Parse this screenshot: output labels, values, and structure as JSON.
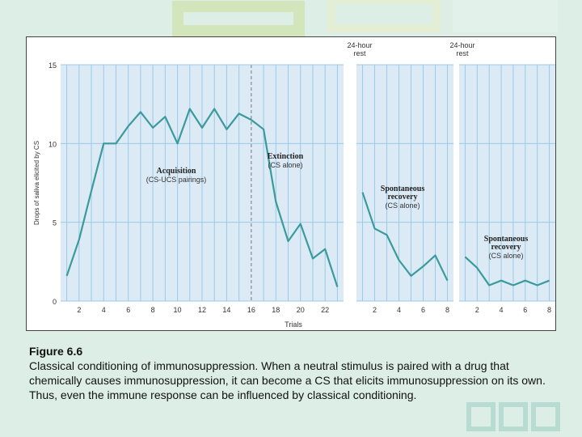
{
  "colors": {
    "background": "#ddeee6",
    "panel": "#dbeaf5",
    "grid": "#9cc9e6",
    "line": "#3a9a9c",
    "text": "#333333"
  },
  "caption": {
    "title": "Figure 6.6",
    "text": "Classical conditioning of immunosuppression. When a neutral stimulus is paired with a drug that chemically causes immunosuppression, it can become a CS that elicits immunosuppression on its own. Thus, even the immune response can be influenced by classical conditioning."
  },
  "chart_data": {
    "type": "line",
    "title": "",
    "xlabel": "Trials",
    "ylabel": "Drops of saliva elicited by CS",
    "ylim": [
      0,
      15
    ],
    "yticks": [
      0,
      5,
      10,
      15
    ],
    "grid": true,
    "panels": [
      {
        "xrange": [
          0.5,
          23.5
        ],
        "xticks": [
          2,
          4,
          6,
          8,
          10,
          12,
          14,
          16,
          18,
          20,
          22
        ],
        "top_label": "",
        "segments": [
          {
            "name": "Acquisition",
            "subtitle": "(CS-UCS pairings)",
            "x": [
              1,
              2,
              3,
              4,
              5,
              6,
              7,
              8,
              9,
              10,
              11,
              12,
              13,
              14,
              15,
              16
            ],
            "y": [
              1.6,
              3.9,
              7.0,
              10.0,
              10.0,
              11.1,
              12.0,
              11.0,
              11.7,
              10.0,
              12.2,
              11.0,
              12.2,
              10.9,
              11.9,
              11.5
            ]
          },
          {
            "name": "Extinction",
            "subtitle": "(CS alone)",
            "x": [
              16,
              17,
              18,
              19,
              20,
              21,
              22,
              23
            ],
            "y": [
              11.5,
              10.9,
              6.3,
              3.8,
              4.9,
              2.7,
              3.3,
              0.9
            ]
          }
        ]
      },
      {
        "xrange": [
          0.5,
          8.5
        ],
        "xticks": [
          2,
          4,
          6,
          8
        ],
        "top_label": "24-hour rest",
        "segments": [
          {
            "name": "Spontaneous recovery",
            "subtitle": "(CS alone)",
            "x": [
              1,
              2,
              3,
              4,
              5,
              6,
              7,
              8
            ],
            "y": [
              6.9,
              4.6,
              4.2,
              2.6,
              1.6,
              2.2,
              2.9,
              1.3
            ]
          }
        ]
      },
      {
        "xrange": [
          0.5,
          8.5
        ],
        "xticks": [
          2,
          4,
          6,
          8
        ],
        "top_label": "24-hour rest",
        "segments": [
          {
            "name": "Spontaneous recovery",
            "subtitle": "(CS alone)",
            "x": [
              1,
              2,
              3,
              4,
              5,
              6,
              7,
              8
            ],
            "y": [
              2.8,
              2.1,
              1.0,
              1.3,
              1.0,
              1.3,
              1.0,
              1.3
            ]
          }
        ]
      }
    ]
  }
}
